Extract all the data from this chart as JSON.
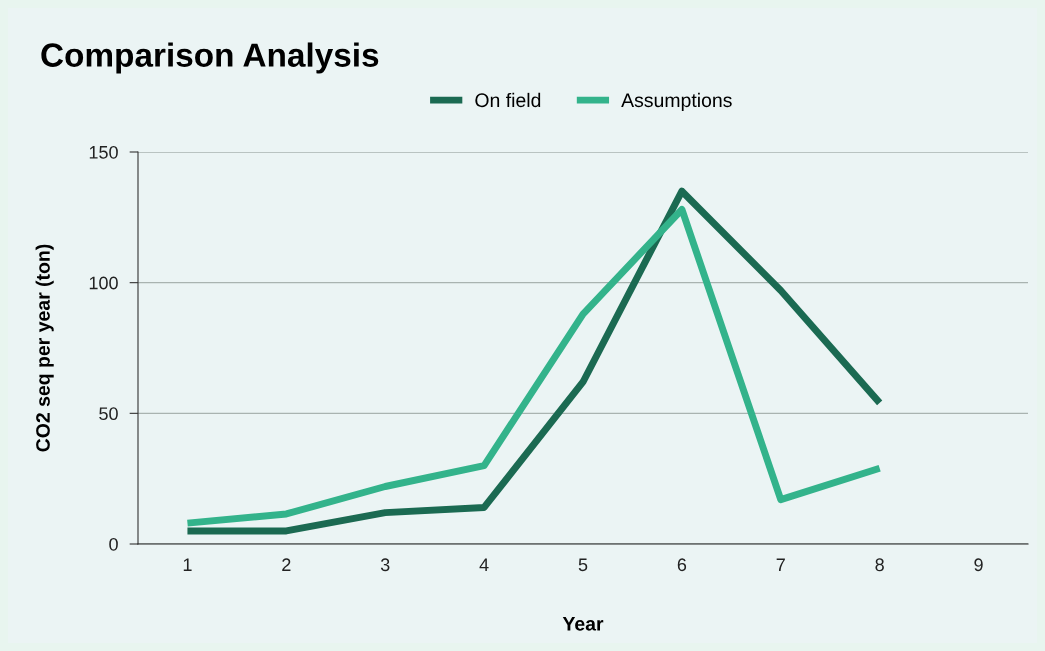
{
  "chart_data": {
    "type": "line",
    "title": "Comparison Analysis",
    "xlabel": "Year",
    "ylabel": "CO2 seq per year (ton)",
    "categories": [
      "1",
      "2",
      "3",
      "4",
      "5",
      "6",
      "7",
      "8",
      "9"
    ],
    "series": [
      {
        "name": "On field",
        "color": "#1b6a52",
        "values": [
          5,
          5,
          12,
          14,
          62,
          135,
          97,
          54,
          null
        ]
      },
      {
        "name": "Assumptions",
        "color": "#33b38b",
        "values": [
          8,
          11.5,
          22,
          30,
          88,
          128,
          17,
          29,
          null
        ]
      }
    ],
    "ylim": [
      0,
      150
    ],
    "yticks": [
      0,
      50,
      100,
      150
    ],
    "grid": "y",
    "legend": "top",
    "marker": "none",
    "line_style": "solid"
  }
}
